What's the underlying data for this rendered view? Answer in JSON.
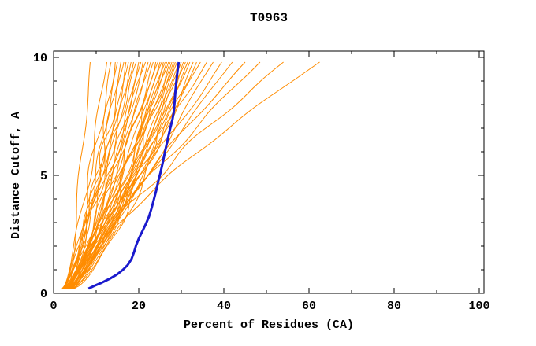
{
  "window": {
    "background": "#ffffff"
  },
  "chart_data": {
    "type": "line",
    "title": "T0963",
    "xlabel": "Percent of Residues (CA)",
    "ylabel": "Distance Cutoff, A",
    "xlim": [
      0,
      100
    ],
    "ylim": [
      0,
      10
    ],
    "x_major_ticks": [
      0,
      20,
      40,
      60,
      80,
      100
    ],
    "x_minor_ticks": [
      10,
      30,
      50,
      70,
      90
    ],
    "y_major_ticks": [
      0,
      5,
      10
    ],
    "y_minor_ticks": [
      1,
      2,
      3,
      4,
      6,
      7,
      8,
      9
    ],
    "grid": false,
    "legend": "none",
    "ticks_mirrored_inward": true,
    "colors": {
      "model_curves": "#ff8c00",
      "highlight_curve": "#1a1acd",
      "frame": "#000000",
      "background": "#ffffff"
    },
    "curve_y_range": [
      0.2,
      9.8
    ],
    "highlight_series": {
      "name": "highlighted-model",
      "color": "#1a1acd",
      "points": [
        [
          8.2,
          0.2
        ],
        [
          9.6,
          0.32
        ],
        [
          11.4,
          0.46
        ],
        [
          13.2,
          0.62
        ],
        [
          14.9,
          0.8
        ],
        [
          16.3,
          1.0
        ],
        [
          17.4,
          1.2
        ],
        [
          18.3,
          1.45
        ],
        [
          18.9,
          1.75
        ],
        [
          19.4,
          2.05
        ],
        [
          20.1,
          2.35
        ],
        [
          20.9,
          2.65
        ],
        [
          21.7,
          2.95
        ],
        [
          22.4,
          3.25
        ],
        [
          23.0,
          3.6
        ],
        [
          23.6,
          4.0
        ],
        [
          24.1,
          4.35
        ],
        [
          24.6,
          4.75
        ],
        [
          25.1,
          5.1
        ],
        [
          25.6,
          5.5
        ],
        [
          26.0,
          5.85
        ],
        [
          26.4,
          6.2
        ],
        [
          26.9,
          6.6
        ],
        [
          27.4,
          7.0
        ],
        [
          27.9,
          7.35
        ],
        [
          28.2,
          7.65
        ],
        [
          28.4,
          8.05
        ],
        [
          28.6,
          8.5
        ],
        [
          28.8,
          8.9
        ],
        [
          29.0,
          9.25
        ],
        [
          29.2,
          9.55
        ],
        [
          29.4,
          9.8
        ]
      ]
    },
    "model_series_format": "[x_pct_at_0.2A, x_pct_at_9.8A, shape_exponent, wiggle_amp_pct, wiggle_freq, wiggle_phase]",
    "model_series": [
      [
        3.8,
        8.6,
        0.95,
        0.5,
        1.0,
        0.0
      ],
      [
        2.2,
        12.5,
        0.78,
        0.68,
        1.2,
        1.7
      ],
      [
        2.8,
        13.5,
        0.85,
        0.86,
        1.4,
        3.4
      ],
      [
        3.4,
        14.5,
        0.7,
        1.04,
        1.6,
        5.1
      ],
      [
        4.0,
        15.0,
        0.9,
        0.5,
        1.8,
        0.5
      ],
      [
        2.0,
        15.8,
        0.75,
        0.68,
        2.0,
        2.2
      ],
      [
        2.5,
        16.5,
        0.82,
        0.86,
        2.2,
        3.9
      ],
      [
        3.0,
        17.0,
        0.68,
        1.04,
        1.0,
        5.6
      ],
      [
        3.6,
        17.6,
        0.88,
        0.5,
        1.2,
        1.0
      ],
      [
        4.2,
        18.2,
        0.74,
        0.68,
        1.4,
        2.7
      ],
      [
        2.1,
        18.8,
        0.8,
        0.86,
        1.6,
        4.4
      ],
      [
        2.6,
        19.4,
        0.92,
        1.04,
        1.8,
        6.1
      ],
      [
        3.1,
        20.0,
        0.7,
        0.5,
        2.0,
        1.5
      ],
      [
        3.7,
        20.5,
        0.84,
        0.68,
        2.2,
        3.2
      ],
      [
        4.3,
        21.0,
        0.76,
        0.86,
        1.0,
        4.9
      ],
      [
        2.2,
        21.6,
        0.9,
        1.04,
        1.2,
        0.3
      ],
      [
        2.7,
        22.2,
        0.72,
        0.5,
        1.4,
        2.0
      ],
      [
        3.2,
        22.8,
        0.86,
        0.68,
        1.6,
        3.7
      ],
      [
        3.8,
        23.4,
        0.78,
        0.86,
        1.8,
        5.4
      ],
      [
        4.4,
        24.0,
        0.66,
        1.04,
        2.0,
        0.8
      ],
      [
        2.3,
        24.5,
        0.88,
        0.5,
        2.2,
        2.5
      ],
      [
        2.8,
        25.0,
        0.74,
        0.68,
        1.0,
        4.2
      ],
      [
        3.3,
        25.4,
        0.82,
        0.86,
        1.2,
        5.9
      ],
      [
        3.9,
        25.8,
        0.7,
        1.04,
        1.4,
        1.3
      ],
      [
        4.5,
        26.2,
        0.9,
        0.5,
        1.6,
        3.0
      ],
      [
        2.4,
        26.6,
        0.76,
        0.68,
        1.8,
        4.7
      ],
      [
        2.9,
        27.0,
        0.84,
        0.86,
        2.0,
        0.1
      ],
      [
        3.4,
        27.4,
        0.68,
        1.04,
        2.2,
        1.8
      ],
      [
        4.0,
        27.8,
        0.8,
        0.5,
        1.0,
        3.5
      ],
      [
        4.6,
        28.2,
        0.73,
        0.68,
        1.2,
        5.2
      ],
      [
        2.5,
        28.6,
        0.87,
        0.86,
        1.4,
        0.6
      ],
      [
        3.0,
        29.0,
        0.71,
        1.04,
        1.6,
        2.3
      ],
      [
        3.5,
        29.5,
        0.83,
        0.5,
        1.8,
        4.0
      ],
      [
        4.1,
        30.0,
        0.77,
        0.68,
        2.0,
        5.7
      ],
      [
        4.7,
        30.5,
        0.69,
        0.86,
        2.2,
        1.1
      ],
      [
        2.6,
        31.0,
        0.85,
        1.04,
        1.0,
        2.8
      ],
      [
        3.1,
        31.5,
        0.75,
        0.5,
        1.2,
        4.5
      ],
      [
        3.6,
        32.0,
        0.81,
        0.68,
        1.4,
        0.0
      ],
      [
        4.2,
        32.8,
        0.72,
        0.86,
        1.6,
        1.6
      ],
      [
        4.8,
        33.6,
        0.88,
        1.04,
        1.8,
        3.3
      ],
      [
        2.7,
        34.5,
        0.95,
        0.5,
        2.0,
        5.0
      ],
      [
        3.2,
        36.0,
        1.0,
        0.68,
        2.2,
        0.4
      ],
      [
        3.8,
        37.5,
        0.92,
        0.86,
        1.0,
        2.1
      ],
      [
        4.4,
        39.5,
        1.05,
        1.04,
        1.2,
        3.8
      ],
      [
        5.0,
        42.0,
        1.1,
        0.5,
        1.4,
        5.5
      ],
      [
        2.8,
        45.0,
        1.15,
        0.68,
        1.6,
        0.9
      ],
      [
        3.3,
        48.5,
        1.2,
        0.86,
        1.8,
        2.6
      ],
      [
        4.0,
        54.0,
        1.28,
        1.04,
        2.0,
        4.3
      ],
      [
        4.6,
        62.5,
        1.35,
        0.5,
        2.2,
        6.0
      ]
    ]
  }
}
